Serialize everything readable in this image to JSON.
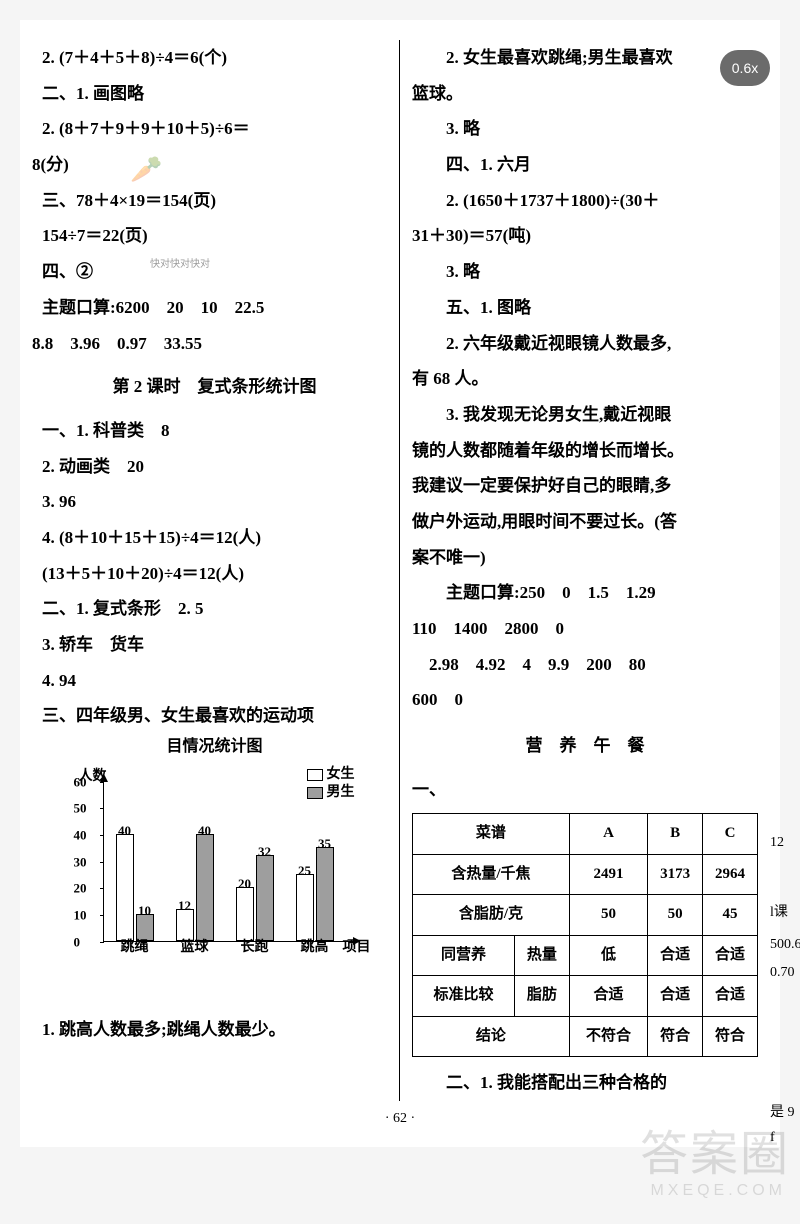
{
  "zoom": "0.6x",
  "left": {
    "l1": "2. (7＋4＋5＋8)÷4＝6(个)",
    "l2": "二、1. 画图略",
    "l3": "2. (8＋7＋9＋9＋10＋5)÷6＝",
    "l3b": "8(分)",
    "l4": "三、78＋4×19＝154(页)",
    "l5": "154÷7＝22(页)",
    "l6": "四、②",
    "l7": "主题口算:6200　20　10　22.5",
    "l7b": "8.8　3.96　0.97　33.55",
    "lesson2": "第 2 课时　复式条形统计图",
    "l8": "一、1. 科普类　8",
    "l9": "2. 动画类　20",
    "l10": "3. 96",
    "l11": "4. (8＋10＋15＋15)÷4＝12(人)",
    "l12": "(13＋5＋10＋20)÷4＝12(人)",
    "l13": "二、1. 复式条形　2. 5",
    "l14": "3. 轿车　货车",
    "l15": "4. 94",
    "l16a": "三、四年级男、女生最喜欢的运动项",
    "l16b": "目情况统计图",
    "l17": "1. 跳高人数最多;跳绳人数最少。"
  },
  "right": {
    "r1": "　　2. 女生最喜欢跳绳;男生最喜欢",
    "r1b": "篮球。",
    "r2": "　　3. 略",
    "r3": "　　四、1. 六月",
    "r4": "　　2. (1650＋1737＋1800)÷(30＋",
    "r4b": "31＋30)＝57(吨)",
    "r5": "　　3. 略",
    "r6": "　　五、1. 图略",
    "r7": "　　2. 六年级戴近视眼镜人数最多,",
    "r7b": "有 68 人。",
    "r8": "　　3. 我发现无论男女生,戴近视眼",
    "r8b": "镜的人数都随着年级的增长而增长。",
    "r8c": "我建议一定要保护好自己的眼睛,多",
    "r8d": "做户外运动,用眼时间不要过长。(答",
    "r8e": "案不唯一)",
    "r9": "　　主题口算:250　0　1.5　1.29",
    "r9b": "110　1400　2800　0",
    "r9c": "　2.98　4.92　4　9.9　200　80",
    "r9d": "600　0",
    "lunch": "营　养　午　餐",
    "r10": "一、",
    "r11": "　　二、1. 我能搭配出三种合格的"
  },
  "chart": {
    "y_label": "人数",
    "y_max": 60,
    "y_step": 10,
    "legend": {
      "girl": "女生",
      "boy": "男生"
    },
    "girl_color": "#ffffff",
    "boy_color": "#9e9e9e",
    "categories": [
      "跳绳",
      "篮球",
      "长跑",
      "跳高"
    ],
    "x_title": "项目",
    "girl_vals": [
      40,
      12,
      20,
      25
    ],
    "boy_vals": [
      10,
      40,
      32,
      35
    ]
  },
  "table": {
    "h0": "菜谱",
    "hA": "A",
    "hB": "B",
    "hC": "C",
    "row1": {
      "label": "含热量/千焦",
      "A": "2491",
      "B": "3173",
      "C": "2964"
    },
    "row2": {
      "label": "含脂肪/克",
      "A": "50",
      "B": "50",
      "C": "45"
    },
    "row3": {
      "g": "同营养",
      "label": "热量",
      "A": "低",
      "B": "合适",
      "C": "合适"
    },
    "row4": {
      "g": "标准比较",
      "label": "脂肪",
      "A": "合适",
      "B": "合适",
      "C": "合适"
    },
    "row5": {
      "label": "结论",
      "A": "不符合",
      "B": "符合",
      "C": "符合"
    }
  },
  "page_num": "· 62 ·",
  "side": {
    "s1": "12",
    "s2": "l课",
    "s3": "500.6",
    "s4": "0.70",
    "s5": "是 9 f"
  },
  "watermark": {
    "main": "答案圈",
    "sub": "MXEQE.COM"
  },
  "kd_note": "快对快对快对"
}
